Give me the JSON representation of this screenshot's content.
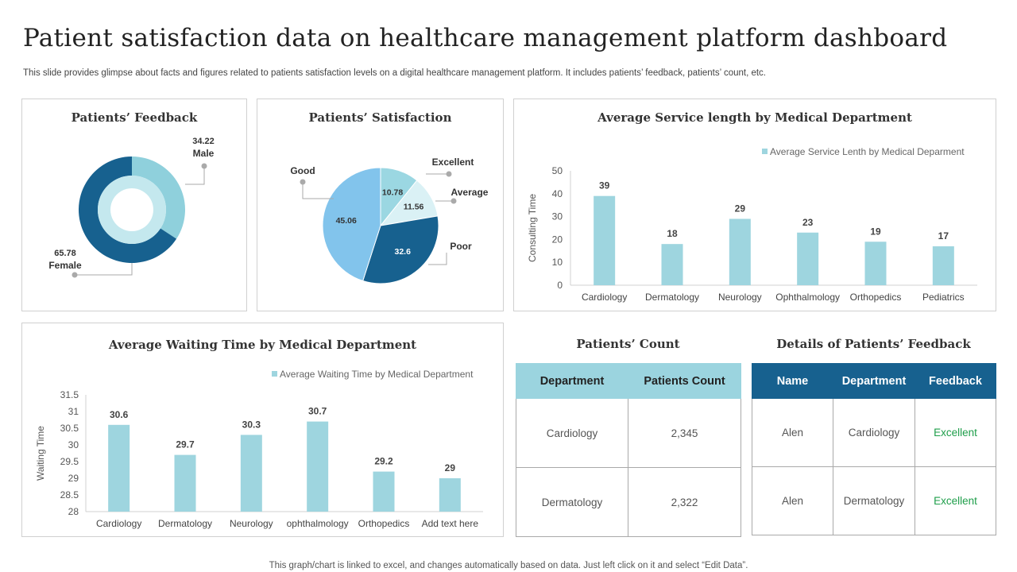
{
  "header": {
    "title": "Patient satisfaction data on healthcare management platform dashboard",
    "subtitle": "This slide provides glimpse about facts and figures related to patients satisfaction levels on a digital healthcare management platform. It includes patients’ feedback, patients’ count, etc."
  },
  "footer": {
    "note": "This graph/chart is linked to excel, and changes automatically based on data. Just left click on it and select “Edit Data”."
  },
  "chart_data": [
    {
      "id": "feedback",
      "type": "pie",
      "title": "Patients’ Feedback",
      "slices": [
        {
          "label": "Male",
          "value": 34.22,
          "value_text": "34.22",
          "color": "#8fd0dc"
        },
        {
          "label": "Female",
          "value": 65.78,
          "value_text": "65.78",
          "color": "#17618f"
        }
      ],
      "inner_ring_color": "#c4e8ee"
    },
    {
      "id": "satisfaction",
      "type": "pie",
      "title": "Patients’ Satisfaction",
      "slices": [
        {
          "label": "Excellent",
          "value": 10.78,
          "value_text": "10.78",
          "color": "#9bd7e2"
        },
        {
          "label": "Average",
          "value": 11.56,
          "value_text": "11.56",
          "color": "#daf1f5"
        },
        {
          "label": "Poor",
          "value": 32.6,
          "value_text": "32.6",
          "color": "#17618f"
        },
        {
          "label": "Good",
          "value": 45.06,
          "value_text": "45.06",
          "color": "#82c4ec"
        }
      ]
    },
    {
      "id": "service",
      "type": "bar",
      "title": "Average Service length by Medical Department",
      "legend": "Average Service Lenth by Medical Deparment",
      "ylabel": "Consulting Time",
      "categories": [
        "Cardiology",
        "Dermatology",
        "Neurology",
        "Ophthalmology",
        "Orthopedics",
        "Pediatrics"
      ],
      "values": [
        39,
        18,
        29,
        23,
        19,
        17
      ],
      "value_labels": [
        "39",
        "18",
        "29",
        "23",
        "19",
        "17"
      ],
      "ylim": [
        0,
        50
      ],
      "yticks": [
        0,
        10,
        20,
        30,
        40,
        50
      ],
      "ytick_labels": [
        "0",
        "10",
        "20",
        "30",
        "40",
        "50"
      ],
      "bar_color": "#9ed5df"
    },
    {
      "id": "waiting",
      "type": "bar",
      "title": "Average Waiting Time by Medical Department",
      "legend": "Average Waiting Time by Medical Department",
      "ylabel": "Waiting Time",
      "categories": [
        "Cardiology",
        "Dermatology",
        "Neurology",
        "ophthalmology",
        "Orthopedics",
        "Add text here"
      ],
      "values": [
        30.6,
        29.7,
        30.3,
        30.7,
        29.2,
        29
      ],
      "value_labels": [
        "30.6",
        "29.7",
        "30.3",
        "30.7",
        "29.2",
        "29"
      ],
      "ylim": [
        28,
        31.5
      ],
      "yticks": [
        28,
        28.5,
        29,
        29.5,
        30,
        30.5,
        31,
        31.5
      ],
      "ytick_labels": [
        "28",
        "28.5",
        "29",
        "29.5",
        "30",
        "30.5",
        "31",
        "31.5"
      ],
      "bar_color": "#9ed5df"
    }
  ],
  "patients_count": {
    "title": "Patients’ Count",
    "headers": [
      "Department",
      "Patients Count"
    ],
    "rows": [
      [
        "Cardiology",
        "2,345"
      ],
      [
        "Dermatology",
        "2,322"
      ]
    ]
  },
  "feedback_details": {
    "title": "Details of Patients’ Feedback",
    "headers": [
      "Name",
      "Department",
      "Feedback"
    ],
    "rows": [
      [
        "Alen",
        "Cardiology",
        "Excellent"
      ],
      [
        "Alen",
        "Dermatology",
        "Excellent"
      ]
    ]
  }
}
